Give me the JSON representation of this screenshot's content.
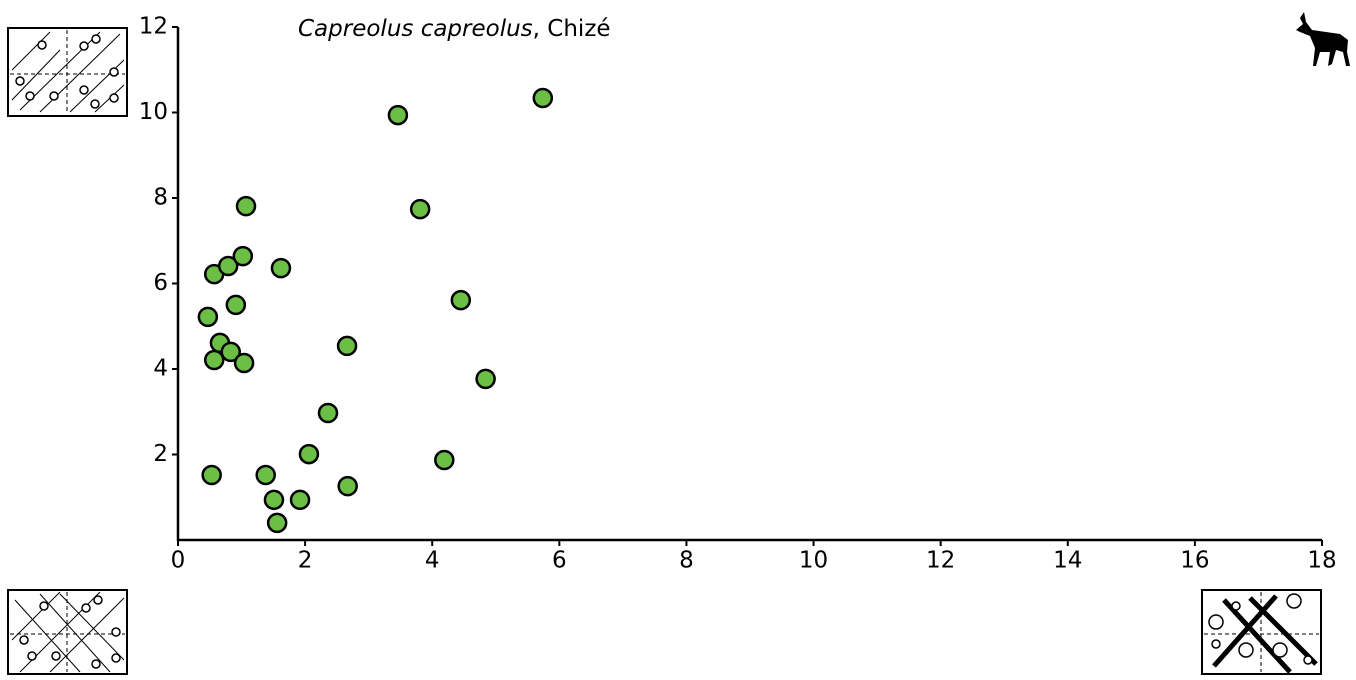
{
  "chart_data": {
    "type": "scatter",
    "title": [
      "Capreolus capreolus",
      ", Chizé"
    ],
    "x": [
      0.53,
      1.38,
      1.51,
      1.56,
      1.92,
      2.06,
      2.36,
      2.67,
      2.66,
      4.19,
      4.84,
      4.45,
      3.81,
      3.46,
      5.74,
      0.47,
      0.57,
      0.66,
      0.83,
      1.04,
      0.91,
      0.57,
      0.79,
      1.02,
      1.07,
      1.62
    ],
    "values": [
      1.52,
      1.52,
      0.94,
      0.4,
      0.94,
      2.01,
      2.97,
      1.26,
      4.54,
      1.87,
      3.77,
      5.61,
      7.74,
      9.94,
      10.34,
      5.22,
      4.21,
      4.61,
      4.4,
      4.14,
      5.5,
      6.22,
      6.41,
      6.64,
      7.81,
      6.36
    ],
    "color": "#6cbf45",
    "xlim": [
      0,
      18
    ],
    "xticks": [
      0,
      2,
      4,
      6,
      8,
      10,
      12,
      14,
      16,
      18
    ],
    "ylim": [
      0,
      12
    ],
    "yticks": [
      2,
      4,
      6,
      8,
      10,
      12
    ]
  }
}
